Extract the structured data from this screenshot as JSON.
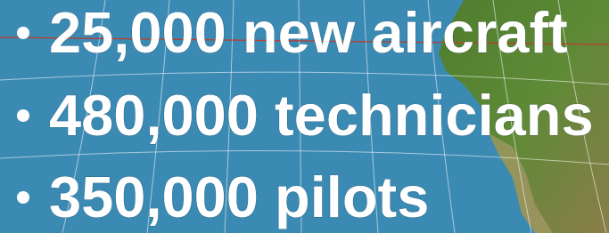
{
  "bullets": [
    "25,000 new aircraft",
    "480,000 technicians",
    "350,000 pilots"
  ]
}
